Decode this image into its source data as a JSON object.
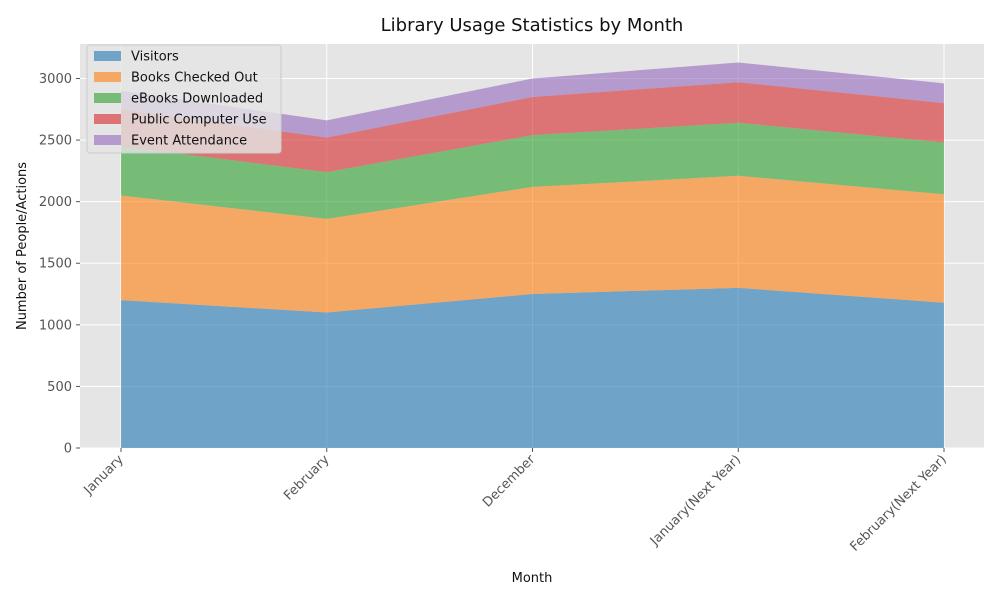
{
  "chart_data": {
    "type": "area",
    "stacked": true,
    "title": "Library Usage Statistics by Month",
    "xlabel": "Month",
    "ylabel": "Number of People/Actions",
    "categories": [
      "January",
      "February",
      "December",
      "January(Next Year)",
      "February(Next Year)"
    ],
    "ylim": [
      0,
      3280
    ],
    "yticks": [
      0,
      500,
      1000,
      1500,
      2000,
      2500,
      3000
    ],
    "grid": true,
    "legend_position": "top-left",
    "series": [
      {
        "name": "Visitors",
        "color": "#1f77b4",
        "values": [
          1200,
          1100,
          1250,
          1300,
          1180
        ]
      },
      {
        "name": "Books Checked Out",
        "color": "#ff7f0e",
        "values": [
          850,
          760,
          870,
          910,
          880
        ]
      },
      {
        "name": "eBooks Downloaded",
        "color": "#2ca02c",
        "values": [
          400,
          380,
          420,
          430,
          420
        ]
      },
      {
        "name": "Public Computer Use",
        "color": "#d62728",
        "values": [
          300,
          280,
          310,
          330,
          320
        ]
      },
      {
        "name": "Event Attendance",
        "color": "#9467bd",
        "values": [
          150,
          140,
          150,
          160,
          160
        ]
      }
    ]
  }
}
